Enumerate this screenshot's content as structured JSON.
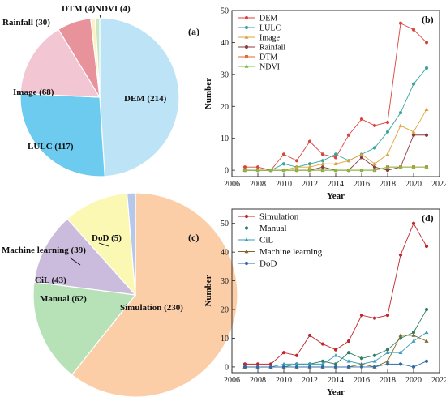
{
  "chart_data": [
    {
      "type": "pie",
      "panel_label": "(a)",
      "slices": [
        {
          "label": "DEM",
          "value": 214,
          "display": "DEM (214)",
          "color": "#bde3f6"
        },
        {
          "label": "LULC",
          "value": 117,
          "display": "LULC (117)",
          "color": "#6dcbef"
        },
        {
          "label": "Image",
          "value": 68,
          "display": "Image (68)",
          "color": "#f2c6d2"
        },
        {
          "label": "Rainfall",
          "value": 30,
          "display": "Rainfall (30)",
          "color": "#e8939b"
        },
        {
          "label": "DTM",
          "value": 4,
          "display": "DTM (4)",
          "color": "#fbf3c4"
        },
        {
          "label": "NDVI",
          "value": 4,
          "display": "NDVI (4)",
          "color": "#c9e6c6"
        }
      ]
    },
    {
      "type": "line",
      "panel_label": "(b)",
      "xlabel": "Year",
      "ylabel": "Number",
      "xlim": [
        2006,
        2022
      ],
      "ylim": [
        -2,
        50
      ],
      "xticks": [
        2006,
        2008,
        2010,
        2012,
        2014,
        2016,
        2018,
        2020,
        2022
      ],
      "yticks": [
        0,
        10,
        20,
        30,
        40,
        50
      ],
      "legend": "top-left",
      "x": [
        2007,
        2008,
        2009,
        2010,
        2011,
        2012,
        2013,
        2014,
        2015,
        2016,
        2017,
        2018,
        2019,
        2020,
        2021
      ],
      "series": [
        {
          "name": "DEM",
          "marker": "circle",
          "color": "#d9453d",
          "values": [
            1,
            1,
            0,
            5,
            3,
            9,
            5,
            4,
            11,
            16,
            14,
            15,
            46,
            44,
            40
          ]
        },
        {
          "name": "LULC",
          "marker": "circle",
          "color": "#3aa69b",
          "values": [
            0,
            0,
            0,
            2,
            1,
            2,
            3,
            5,
            3,
            5,
            7,
            12,
            18,
            27,
            32
          ]
        },
        {
          "name": "Image",
          "marker": "triangle",
          "color": "#dca43a",
          "values": [
            0,
            0,
            0,
            0,
            1,
            1,
            2,
            2,
            3,
            5,
            2,
            5,
            14,
            12,
            19
          ]
        },
        {
          "name": "Rainfall",
          "marker": "circle",
          "color": "#8b3a42",
          "values": [
            0,
            0,
            0,
            0,
            0,
            0,
            1,
            0,
            0,
            4,
            1,
            0,
            1,
            11,
            11
          ]
        },
        {
          "name": "DTM",
          "marker": "square",
          "color": "#e36b2b",
          "values": [
            0,
            0,
            0,
            0,
            0,
            0,
            0,
            0,
            0,
            0,
            0,
            1,
            1,
            1,
            1
          ]
        },
        {
          "name": "NDVI",
          "marker": "triangle",
          "color": "#7ac043",
          "values": [
            0,
            0,
            0,
            0,
            0,
            0,
            0,
            0,
            0,
            0,
            0,
            1,
            1,
            1,
            1
          ]
        }
      ]
    },
    {
      "type": "pie",
      "panel_label": "(c)",
      "slices": [
        {
          "label": "Simulation",
          "value": 230,
          "display": "Simulation (230)",
          "color": "#fbcea8"
        },
        {
          "label": "Manual",
          "value": 62,
          "display": "Manual (62)",
          "color": "#b7e1b7"
        },
        {
          "label": "CiL",
          "value": 43,
          "display": "CiL (43)",
          "color": "#cbbcdd"
        },
        {
          "label": "Machine learning",
          "value": 39,
          "display": "Machine learning (39)",
          "color": "#fbf8b4"
        },
        {
          "label": "DoD",
          "value": 5,
          "display": "DoD (5)",
          "color": "#b5c8ec"
        }
      ]
    },
    {
      "type": "line",
      "panel_label": "(d)",
      "xlabel": "Year",
      "ylabel": "Number",
      "xlim": [
        2006,
        2022
      ],
      "ylim": [
        -2,
        55
      ],
      "xticks": [
        2006,
        2008,
        2010,
        2012,
        2014,
        2016,
        2018,
        2020,
        2022
      ],
      "yticks": [
        0,
        10,
        20,
        30,
        40,
        50
      ],
      "legend": "top-left",
      "x": [
        2007,
        2008,
        2009,
        2010,
        2011,
        2012,
        2013,
        2014,
        2015,
        2016,
        2017,
        2018,
        2019,
        2020,
        2021
      ],
      "series": [
        {
          "name": "Simulation",
          "marker": "circle",
          "color": "#c0262b",
          "values": [
            1,
            1,
            1,
            5,
            4,
            11,
            8,
            6,
            9,
            18,
            17,
            18,
            39,
            50,
            42
          ]
        },
        {
          "name": "Manual",
          "marker": "circle",
          "color": "#2f7e63",
          "values": [
            0,
            0,
            0,
            0,
            1,
            1,
            2,
            1,
            5,
            3,
            4,
            6,
            10,
            12,
            20
          ]
        },
        {
          "name": "CiL",
          "marker": "triangle",
          "color": "#3a9fb8",
          "values": [
            0,
            0,
            0,
            1,
            1,
            1,
            1,
            4,
            2,
            1,
            2,
            5,
            5,
            9,
            12
          ]
        },
        {
          "name": "Machine learning",
          "marker": "triangle",
          "color": "#7a6a22",
          "values": [
            0,
            0,
            0,
            0,
            0,
            0,
            0,
            0,
            0,
            1,
            0,
            2,
            11,
            11,
            9
          ]
        },
        {
          "name": "DoD",
          "marker": "circle",
          "color": "#2f6aa8",
          "values": [
            0,
            0,
            0,
            0,
            0,
            0,
            0,
            0,
            0,
            0,
            0,
            1,
            1,
            0,
            2
          ]
        }
      ]
    }
  ]
}
